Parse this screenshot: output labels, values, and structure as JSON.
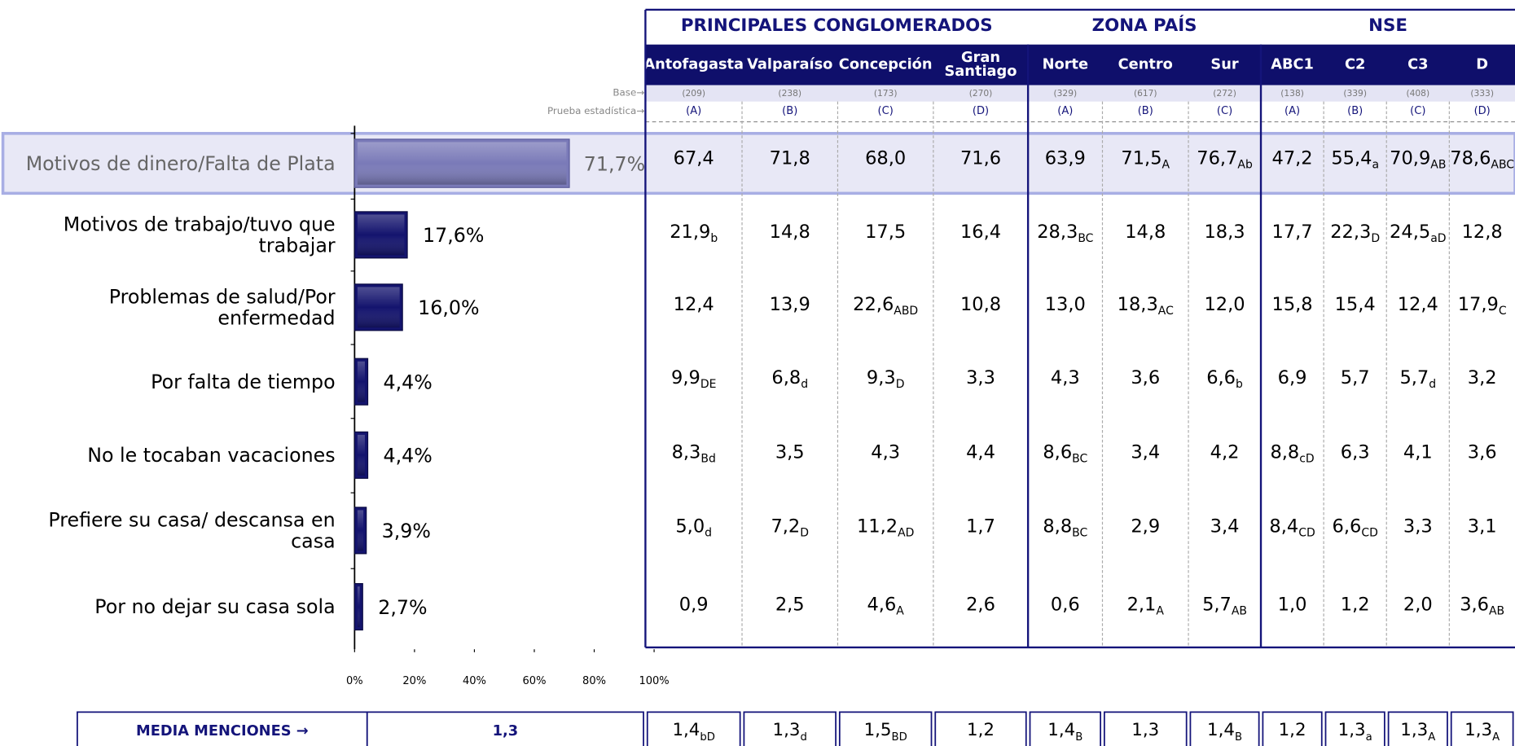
{
  "chart_data": {
    "type": "hbar",
    "categories": [
      "Motivos de dinero/Falta de Plata",
      "Motivos de trabajo/tuvo que trabajar",
      "Problemas de salud/Por enfermedad",
      "Por falta de tiempo",
      "No le tocaban vacaciones",
      "Prefiere su casa/ descansa en casa",
      "Por no dejar su casa sola"
    ],
    "values": [
      71.7,
      17.6,
      16.0,
      4.4,
      4.4,
      3.9,
      2.7
    ],
    "value_labels": [
      "71,7%",
      "17,6%",
      "16,0%",
      "4,4%",
      "4,4%",
      "3,9%",
      "2,7%"
    ],
    "color": "#14146e",
    "highlight_color": "#7a7ab8",
    "xlim": [
      0,
      100
    ],
    "xticks": [
      {
        "value": 0,
        "label": "0%"
      },
      {
        "value": 20,
        "label": "20%"
      },
      {
        "value": 40,
        "label": "40%"
      },
      {
        "value": 60,
        "label": "60%"
      },
      {
        "value": 80,
        "label": "80%"
      },
      {
        "value": 100,
        "label": "100%"
      }
    ]
  },
  "table": {
    "groups": [
      {
        "name": "PRINCIPALES CONGLOMERADOS",
        "span": 4
      },
      {
        "name": "ZONA PAÍS",
        "span": 3
      },
      {
        "name": "NSE",
        "span": 4
      }
    ],
    "base_label": "Base→",
    "test_label": "Prueba estadística→",
    "columns": [
      {
        "name": "Antofagasta",
        "base": "(209)",
        "letter": "(A)"
      },
      {
        "name": "Valparaíso",
        "base": "(238)",
        "letter": "(B)"
      },
      {
        "name": "Concepción",
        "base": "(173)",
        "letter": "(C)"
      },
      {
        "name": "Gran Santiago",
        "base": "(270)",
        "letter": "(D)"
      },
      {
        "name": "Norte",
        "base": "(329)",
        "letter": "(A)"
      },
      {
        "name": "Centro",
        "base": "(617)",
        "letter": "(B)"
      },
      {
        "name": "Sur",
        "base": "(272)",
        "letter": "(C)"
      },
      {
        "name": "ABC1",
        "base": "(138)",
        "letter": "(A)"
      },
      {
        "name": "C2",
        "base": "(339)",
        "letter": "(B)"
      },
      {
        "name": "C3",
        "base": "(408)",
        "letter": "(C)"
      },
      {
        "name": "D",
        "base": "(333)",
        "letter": "(D)"
      }
    ],
    "rows": [
      [
        {
          "text": "67,4"
        },
        {
          "text": "71,8"
        },
        {
          "text": "68,0"
        },
        {
          "text": "71,6"
        },
        {
          "text": "63,9"
        },
        {
          "text": "71,5",
          "sub": "A"
        },
        {
          "text": "76,7",
          "sub": "Ab"
        },
        {
          "text": "47,2"
        },
        {
          "text": "55,4",
          "sub": "a"
        },
        {
          "text": "70,9",
          "sub": "AB"
        },
        {
          "text": "78,6",
          "sub": "ABC"
        }
      ],
      [
        {
          "text": "21,9",
          "sub": "b"
        },
        {
          "text": "14,8"
        },
        {
          "text": "17,5"
        },
        {
          "text": "16,4"
        },
        {
          "text": "28,3",
          "sub": "BC"
        },
        {
          "text": "14,8"
        },
        {
          "text": "18,3"
        },
        {
          "text": "17,7"
        },
        {
          "text": "22,3",
          "sub": "D"
        },
        {
          "text": "24,5",
          "sub": "aD"
        },
        {
          "text": "12,8"
        }
      ],
      [
        {
          "text": "12,4"
        },
        {
          "text": "13,9"
        },
        {
          "text": "22,6",
          "sub": "ABD"
        },
        {
          "text": "10,8"
        },
        {
          "text": "13,0"
        },
        {
          "text": "18,3",
          "sub": "AC"
        },
        {
          "text": "12,0"
        },
        {
          "text": "15,8"
        },
        {
          "text": "15,4"
        },
        {
          "text": "12,4"
        },
        {
          "text": "17,9",
          "sub": "C"
        }
      ],
      [
        {
          "text": "9,9",
          "sub": "DE"
        },
        {
          "text": "6,8",
          "sub": "d"
        },
        {
          "text": "9,3",
          "sub": "D"
        },
        {
          "text": "3,3"
        },
        {
          "text": "4,3"
        },
        {
          "text": "3,6"
        },
        {
          "text": "6,6",
          "sub": "b"
        },
        {
          "text": "6,9"
        },
        {
          "text": "5,7"
        },
        {
          "text": "5,7",
          "sub": "d"
        },
        {
          "text": "3,2"
        }
      ],
      [
        {
          "text": "8,3",
          "sub": "Bd"
        },
        {
          "text": "3,5"
        },
        {
          "text": "4,3"
        },
        {
          "text": "4,4"
        },
        {
          "text": "8,6",
          "sub": "BC"
        },
        {
          "text": "3,4"
        },
        {
          "text": "4,2"
        },
        {
          "text": "8,8",
          "sub": "cD"
        },
        {
          "text": "6,3"
        },
        {
          "text": "4,1"
        },
        {
          "text": "3,6"
        }
      ],
      [
        {
          "text": "5,0",
          "sub": "d"
        },
        {
          "text": "7,2",
          "sub": "D"
        },
        {
          "text": "11,2",
          "sub": "AD"
        },
        {
          "text": "1,7"
        },
        {
          "text": "8,8",
          "sub": "BC"
        },
        {
          "text": "2,9"
        },
        {
          "text": "3,4"
        },
        {
          "text": "8,4",
          "sub": "CD"
        },
        {
          "text": "6,6",
          "sub": "CD"
        },
        {
          "text": "3,3"
        },
        {
          "text": "3,1"
        }
      ],
      [
        {
          "text": "0,9"
        },
        {
          "text": "2,5"
        },
        {
          "text": "4,6",
          "sub": "A"
        },
        {
          "text": "2,6"
        },
        {
          "text": "0,6"
        },
        {
          "text": "2,1",
          "sub": "A"
        },
        {
          "text": "5,7",
          "sub": "AB"
        },
        {
          "text": "1,0"
        },
        {
          "text": "1,2"
        },
        {
          "text": "2,0"
        },
        {
          "text": "3,6",
          "sub": "AB"
        }
      ]
    ],
    "media": {
      "label": "MEDIA MENCIONES →",
      "total": "1,3",
      "cells": [
        {
          "text": "1,4",
          "sub": "bD"
        },
        {
          "text": "1,3",
          "sub": "d"
        },
        {
          "text": "1,5",
          "sub": "BD"
        },
        {
          "text": "1,2"
        },
        {
          "text": "1,4",
          "sub": "B"
        },
        {
          "text": "1,3"
        },
        {
          "text": "1,4",
          "sub": "B"
        },
        {
          "text": "1,2"
        },
        {
          "text": "1,3",
          "sub": "a"
        },
        {
          "text": "1,3",
          "sub": "A"
        },
        {
          "text": "1,3",
          "sub": "A"
        }
      ]
    }
  }
}
